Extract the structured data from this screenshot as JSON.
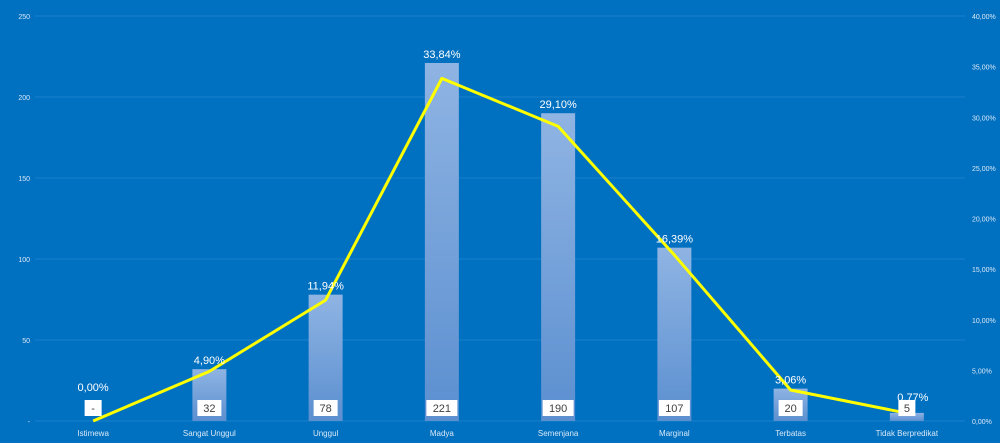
{
  "colors": {
    "background": "#0070c0",
    "bar_top": "#8fb4e3",
    "bar_bottom": "#5b8fd0",
    "line": "#ffff00",
    "gridline": "#1a80cc",
    "text": "#ffffff",
    "axis_text": "#dbe9f7",
    "count_box": "#ffffff",
    "count_text": "#404040"
  },
  "chart_data": {
    "type": "bar",
    "categories": [
      "Istimewa",
      "Sangat Unggul",
      "Unggul",
      "Madya",
      "Semenjana",
      "Marginal",
      "Terbatas",
      "Tidak Berpredikat"
    ],
    "series": [
      {
        "type": "bar",
        "axis": "left",
        "values": [
          0,
          32,
          78,
          221,
          190,
          107,
          20,
          5
        ]
      },
      {
        "type": "line",
        "axis": "right",
        "values": [
          0.0,
          4.9,
          11.94,
          33.84,
          29.1,
          16.39,
          3.06,
          0.77
        ]
      }
    ],
    "count_labels": [
      "-",
      "32",
      "78",
      "221",
      "190",
      "107",
      "20",
      "5"
    ],
    "percent_labels": [
      "0,00%",
      "4,90%",
      "11,94%",
      "33,84%",
      "29,10%",
      "16,39%",
      "3,06%",
      "0,77%"
    ],
    "y_left": {
      "ticks": [
        "-",
        "50",
        "100",
        "150",
        "200",
        "250"
      ],
      "values": [
        0,
        50,
        100,
        150,
        200,
        250
      ],
      "ylim": [
        0,
        250
      ]
    },
    "y_right": {
      "ticks": [
        "0,00%",
        "5,00%",
        "10,00%",
        "15,00%",
        "20,00%",
        "25,00%",
        "30,00%",
        "35,00%",
        "40,00%"
      ],
      "values": [
        0,
        5,
        10,
        15,
        20,
        25,
        30,
        35,
        40
      ],
      "ylim": [
        0,
        40
      ]
    },
    "grid": true,
    "legend": "none"
  }
}
